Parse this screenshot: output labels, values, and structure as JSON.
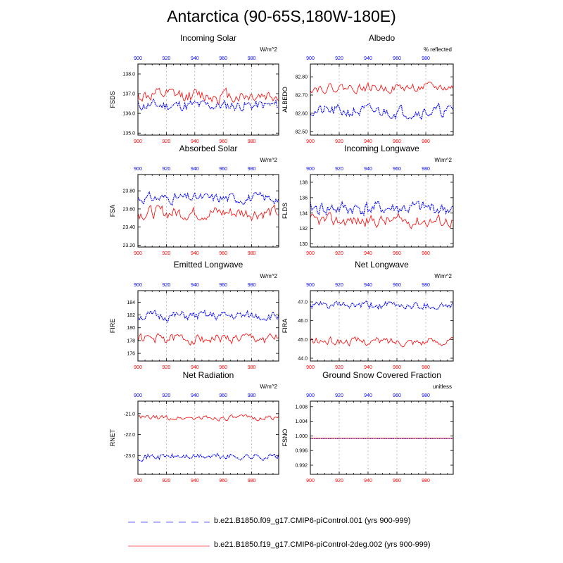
{
  "title": "Antarctica (90-65S,180W-180E)",
  "colors": {
    "series1": "#0000ff",
    "series2": "#ff0000",
    "grid": "#888888",
    "axis": "#000000"
  },
  "legend": [
    {
      "label": "b.e21.B1850.f09_g17.CMIP6-piControl.001 (yrs 900-999)",
      "style": "dashed",
      "color": "#0000ff"
    },
    {
      "label": "b.e21.B1850.f19_g17.CMIP6-piControl-2deg.002 (yrs 900-999)",
      "style": "solid",
      "color": "#ff0000"
    }
  ],
  "chart_data": [
    {
      "type": "line",
      "title": "Incoming Solar",
      "ylabel": "FSDS",
      "units": "W/m^2",
      "xlim": [
        900,
        999
      ],
      "ylim": [
        134.9,
        138.5
      ],
      "yticks": [
        135.0,
        136.0,
        137.0,
        138.0
      ],
      "ytick_decimals": 1,
      "x_ticks": [
        900,
        920,
        940,
        960,
        980
      ],
      "series": [
        {
          "color": "#0000ff",
          "style": "dotted",
          "mean": 136.4,
          "amp": 0.45,
          "seed": 11
        },
        {
          "color": "#ff0000",
          "style": "solid",
          "mean": 136.9,
          "amp": 0.55,
          "seed": 12
        }
      ]
    },
    {
      "type": "line",
      "title": "Albedo",
      "ylabel": "ALBEDO",
      "units": "% reflected",
      "xlim": [
        900,
        999
      ],
      "ylim": [
        82.48,
        82.87
      ],
      "yticks": [
        82.5,
        82.6,
        82.7,
        82.8
      ],
      "ytick_decimals": 2,
      "x_ticks": [
        900,
        920,
        940,
        960,
        980
      ],
      "series": [
        {
          "color": "#0000ff",
          "style": "dotted",
          "mean": 82.61,
          "amp": 0.055,
          "seed": 21
        },
        {
          "color": "#ff0000",
          "style": "solid",
          "mean": 82.74,
          "amp": 0.04,
          "seed": 22
        }
      ]
    },
    {
      "type": "line",
      "title": "Absorbed Solar",
      "ylabel": "FSA",
      "units": "W/m^2",
      "xlim": [
        900,
        999
      ],
      "ylim": [
        23.18,
        23.98
      ],
      "yticks": [
        23.2,
        23.4,
        23.6,
        23.8
      ],
      "ytick_decimals": 2,
      "x_ticks": [
        900,
        920,
        940,
        960,
        980
      ],
      "series": [
        {
          "color": "#0000ff",
          "style": "dotted",
          "mean": 23.72,
          "amp": 0.09,
          "seed": 31
        },
        {
          "color": "#ff0000",
          "style": "solid",
          "mean": 23.56,
          "amp": 0.12,
          "seed": 32
        }
      ]
    },
    {
      "type": "line",
      "title": "Incoming Longwave",
      "ylabel": "FLDS",
      "units": "W/m^2",
      "xlim": [
        900,
        999
      ],
      "ylim": [
        129.6,
        139.0
      ],
      "yticks": [
        130,
        132,
        134,
        136,
        138
      ],
      "ytick_decimals": 0,
      "x_ticks": [
        900,
        920,
        940,
        960,
        980
      ],
      "series": [
        {
          "color": "#0000ff",
          "style": "dotted",
          "mean": 134.6,
          "amp": 1.5,
          "seed": 41
        },
        {
          "color": "#ff0000",
          "style": "solid",
          "mean": 133.0,
          "amp": 1.3,
          "seed": 42
        }
      ]
    },
    {
      "type": "line",
      "title": "Emitted Longwave",
      "ylabel": "FIRE",
      "units": "W/m^2",
      "xlim": [
        900,
        999
      ],
      "ylim": [
        174.8,
        185.8
      ],
      "yticks": [
        176,
        178,
        180,
        182,
        184
      ],
      "ytick_decimals": 0,
      "x_ticks": [
        900,
        920,
        940,
        960,
        980
      ],
      "series": [
        {
          "color": "#0000ff",
          "style": "dotted",
          "mean": 181.8,
          "amp": 1.2,
          "seed": 51
        },
        {
          "color": "#ff0000",
          "style": "solid",
          "mean": 178.3,
          "amp": 1.3,
          "seed": 52
        }
      ]
    },
    {
      "type": "line",
      "title": "Net Longwave",
      "ylabel": "FIRA",
      "units": "W/m^2",
      "xlim": [
        900,
        999
      ],
      "ylim": [
        43.85,
        47.6
      ],
      "yticks": [
        44.0,
        45.0,
        46.0,
        47.0
      ],
      "ytick_decimals": 1,
      "x_ticks": [
        900,
        920,
        940,
        960,
        980
      ],
      "series": [
        {
          "color": "#0000ff",
          "style": "dotted",
          "mean": 46.8,
          "amp": 0.35,
          "seed": 61
        },
        {
          "color": "#ff0000",
          "style": "solid",
          "mean": 44.9,
          "amp": 0.35,
          "seed": 62
        }
      ]
    },
    {
      "type": "line",
      "title": "Net Radiation",
      "ylabel": "RNET",
      "units": "W/m^2",
      "xlim": [
        900,
        999
      ],
      "ylim": [
        -23.9,
        -20.4
      ],
      "yticks": [
        -23.0,
        -22.0,
        -21.0
      ],
      "ytick_decimals": 1,
      "x_ticks": [
        900,
        920,
        940,
        960,
        980
      ],
      "series": [
        {
          "color": "#0000ff",
          "style": "dotted",
          "mean": -23.05,
          "amp": 0.25,
          "seed": 71
        },
        {
          "color": "#ff0000",
          "style": "solid",
          "mean": -21.2,
          "amp": 0.2,
          "seed": 72
        }
      ]
    },
    {
      "type": "line",
      "title": "Ground Snow Covered Fraction",
      "ylabel": "FSNO",
      "units": "unitless",
      "xlim": [
        900,
        999
      ],
      "ylim": [
        0.9895,
        1.0095
      ],
      "yticks": [
        0.992,
        0.996,
        1.0,
        1.004,
        1.008
      ],
      "ytick_decimals": 3,
      "x_ticks": [
        900,
        920,
        940,
        960,
        980
      ],
      "series": [
        {
          "color": "#0000ff",
          "style": "dotted",
          "mean": 0.9993,
          "amp": 2e-05,
          "seed": 81
        },
        {
          "color": "#ff0000",
          "style": "solid",
          "mean": 0.9994,
          "amp": 2e-05,
          "seed": 82
        }
      ]
    }
  ]
}
